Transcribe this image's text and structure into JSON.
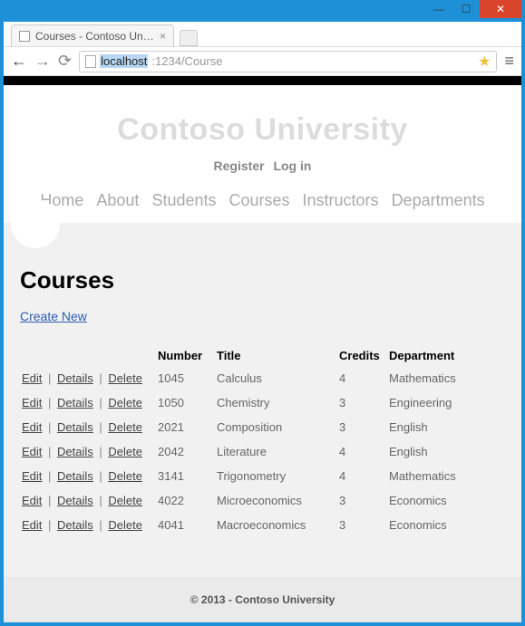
{
  "window": {
    "tab_title": "Courses - Contoso Univer...",
    "url_host": "localhost",
    "url_rest": ":1234/Course"
  },
  "hero": {
    "title": "Contoso University",
    "register": "Register",
    "login": "Log in"
  },
  "nav": {
    "items": [
      "Home",
      "About",
      "Students",
      "Courses",
      "Instructors",
      "Departments"
    ]
  },
  "page": {
    "heading": "Courses",
    "create_label": "Create New"
  },
  "table": {
    "headers": {
      "actions": "",
      "number": "Number",
      "title": "Title",
      "credits": "Credits",
      "department": "Department"
    },
    "action_labels": {
      "edit": "Edit",
      "details": "Details",
      "delete": "Delete",
      "sep": "|"
    },
    "rows": [
      {
        "number": "1045",
        "title": "Calculus",
        "credits": "4",
        "department": "Mathematics"
      },
      {
        "number": "1050",
        "title": "Chemistry",
        "credits": "3",
        "department": "Engineering"
      },
      {
        "number": "2021",
        "title": "Composition",
        "credits": "3",
        "department": "English"
      },
      {
        "number": "2042",
        "title": "Literature",
        "credits": "4",
        "department": "English"
      },
      {
        "number": "3141",
        "title": "Trigonometry",
        "credits": "4",
        "department": "Mathematics"
      },
      {
        "number": "4022",
        "title": "Microeconomics",
        "credits": "3",
        "department": "Economics"
      },
      {
        "number": "4041",
        "title": "Macroeconomics",
        "credits": "3",
        "department": "Economics"
      }
    ]
  },
  "footer": {
    "text": "© 2013 - Contoso University"
  }
}
